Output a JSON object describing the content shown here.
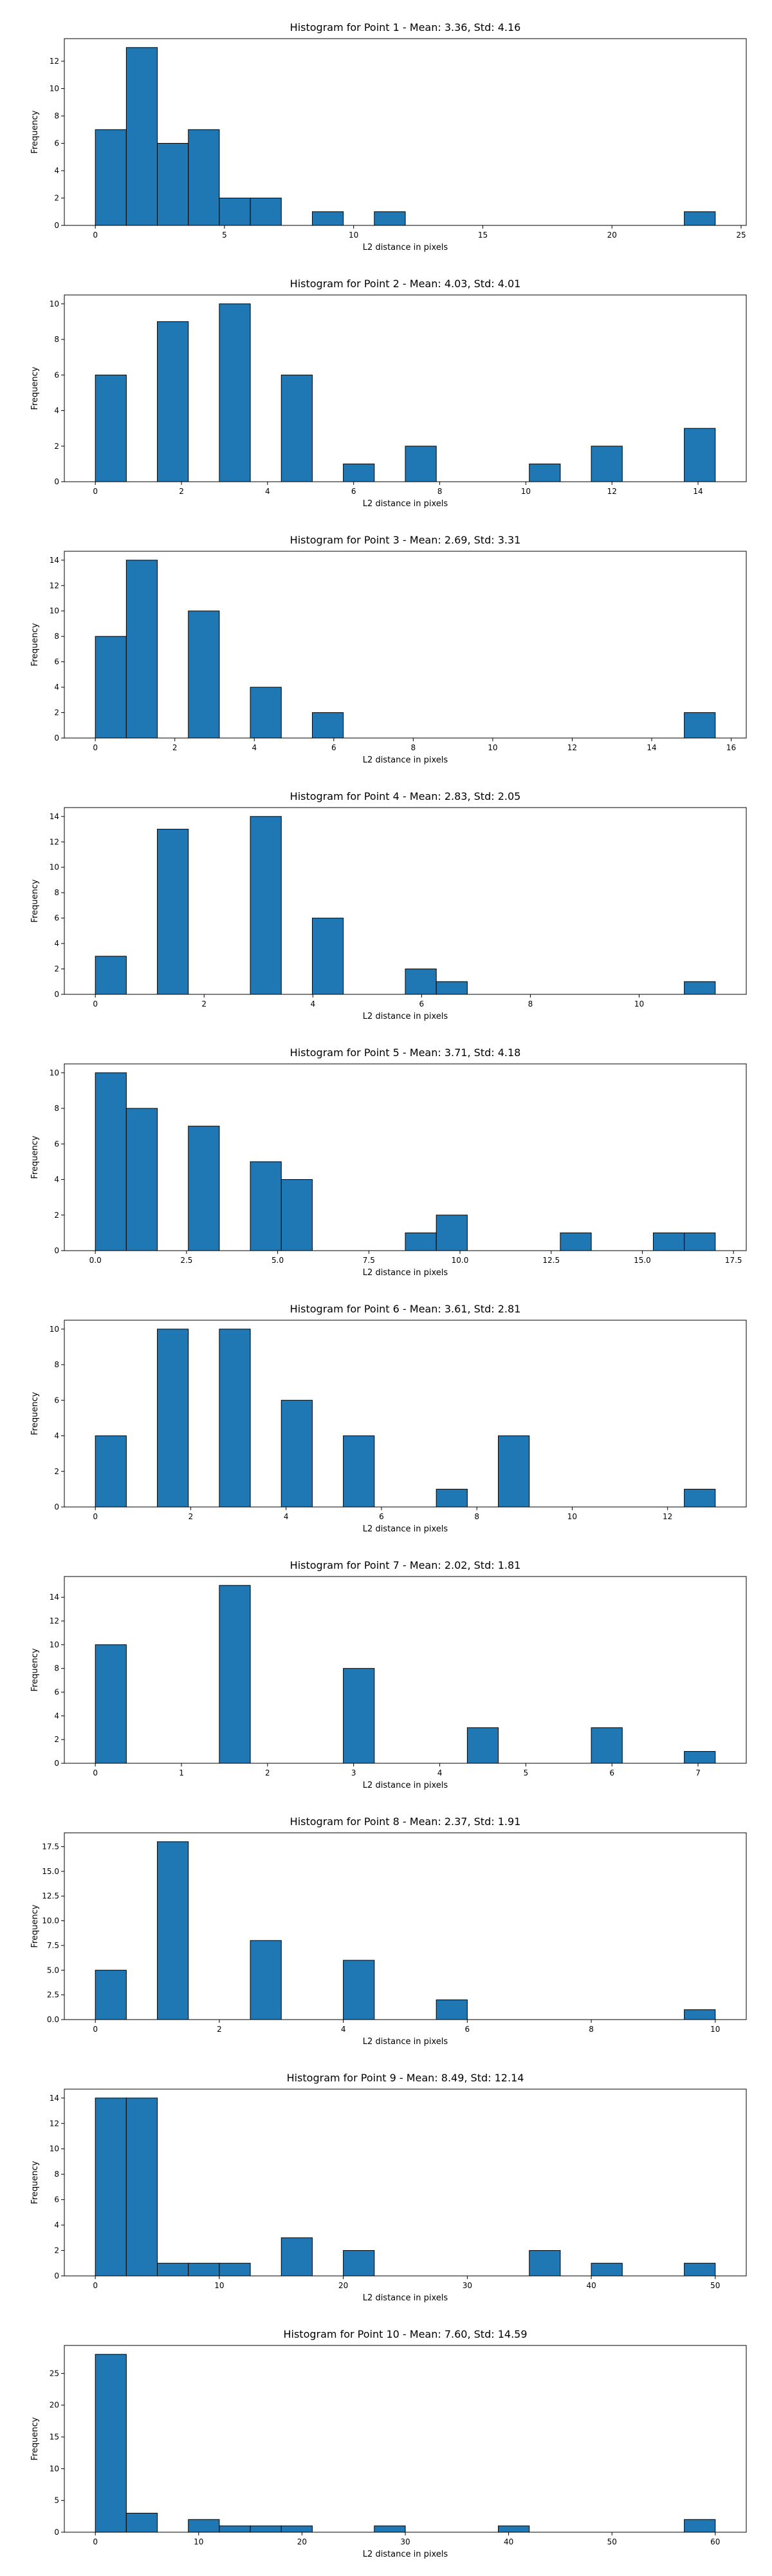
{
  "chart_data": [
    {
      "type": "bar",
      "title": "Histogram for Point 1 - Mean: 3.36, Std: 4.16",
      "xlabel": "L2 distance in pixels",
      "ylabel": "Frequency",
      "xlim": [
        -1.2,
        25.2
      ],
      "ylim": [
        0,
        13.65
      ],
      "xticks": [
        0,
        5,
        10,
        15,
        20,
        25
      ],
      "xtick_labels": [
        "0",
        "5",
        "10",
        "15",
        "20",
        "25"
      ],
      "yticks": [
        0,
        2,
        4,
        6,
        8,
        10,
        12
      ],
      "ytick_labels": [
        "0",
        "2",
        "4",
        "6",
        "8",
        "10",
        "12"
      ],
      "bin_edges": [
        0.0,
        1.2,
        2.4,
        3.6,
        4.8,
        6.0,
        7.2,
        8.4,
        9.6,
        10.8,
        12.0,
        13.2,
        14.4,
        15.6,
        16.8,
        18.0,
        19.2,
        20.4,
        21.6,
        22.8,
        24.0
      ],
      "values": [
        7,
        13,
        6,
        7,
        2,
        2,
        0,
        1,
        0,
        1,
        0,
        0,
        0,
        0,
        0,
        0,
        0,
        0,
        0,
        1
      ],
      "grid": false,
      "color": "#1f77b4"
    },
    {
      "type": "bar",
      "title": "Histogram for Point 2 - Mean: 4.03, Std: 4.01",
      "xlabel": "L2 distance in pixels",
      "ylabel": "Frequency",
      "xlim": [
        -0.72,
        15.12
      ],
      "ylim": [
        0,
        10.5
      ],
      "xticks": [
        0,
        2,
        4,
        6,
        8,
        10,
        12,
        14
      ],
      "xtick_labels": [
        "0",
        "2",
        "4",
        "6",
        "8",
        "10",
        "12",
        "14"
      ],
      "yticks": [
        0,
        2,
        4,
        6,
        8,
        10
      ],
      "ytick_labels": [
        "0",
        "2",
        "4",
        "6",
        "8",
        "10"
      ],
      "bin_edges": [
        0.0,
        0.72,
        1.44,
        2.16,
        2.88,
        3.6,
        4.32,
        5.04,
        5.76,
        6.48,
        7.2,
        7.92,
        8.64,
        9.36,
        10.08,
        10.8,
        11.52,
        12.24,
        12.96,
        13.68,
        14.4
      ],
      "values": [
        6,
        0,
        9,
        0,
        10,
        0,
        6,
        0,
        1,
        0,
        2,
        0,
        0,
        0,
        1,
        0,
        2,
        0,
        0,
        3
      ],
      "grid": false,
      "color": "#1f77b4"
    },
    {
      "type": "bar",
      "title": "Histogram for Point 3 - Mean: 2.69, Std: 3.31",
      "xlabel": "L2 distance in pixels",
      "ylabel": "Frequency",
      "xlim": [
        -0.78,
        16.38
      ],
      "ylim": [
        0,
        14.7
      ],
      "xticks": [
        0,
        2,
        4,
        6,
        8,
        10,
        12,
        14,
        16
      ],
      "xtick_labels": [
        "0",
        "2",
        "4",
        "6",
        "8",
        "10",
        "12",
        "14",
        "16"
      ],
      "yticks": [
        0,
        2,
        4,
        6,
        8,
        10,
        12,
        14
      ],
      "ytick_labels": [
        "0",
        "2",
        "4",
        "6",
        "8",
        "10",
        "12",
        "14"
      ],
      "bin_edges": [
        0.0,
        0.78,
        1.56,
        2.34,
        3.12,
        3.9,
        4.68,
        5.46,
        6.24,
        7.02,
        7.8,
        8.58,
        9.36,
        10.14,
        10.92,
        11.7,
        12.48,
        13.26,
        14.04,
        14.82,
        15.6
      ],
      "values": [
        8,
        14,
        0,
        10,
        0,
        4,
        0,
        2,
        0,
        0,
        0,
        0,
        0,
        0,
        0,
        0,
        0,
        0,
        0,
        2
      ],
      "grid": false,
      "color": "#1f77b4"
    },
    {
      "type": "bar",
      "title": "Histogram for Point 4 - Mean: 2.83, Std: 2.05",
      "xlabel": "L2 distance in pixels",
      "ylabel": "Frequency",
      "xlim": [
        -0.57,
        11.97
      ],
      "ylim": [
        0,
        14.7
      ],
      "xticks": [
        0,
        2,
        4,
        6,
        8,
        10
      ],
      "xtick_labels": [
        "0",
        "2",
        "4",
        "6",
        "8",
        "10"
      ],
      "yticks": [
        0,
        2,
        4,
        6,
        8,
        10,
        12,
        14
      ],
      "ytick_labels": [
        "0",
        "2",
        "4",
        "6",
        "8",
        "10",
        "12",
        "14"
      ],
      "bin_edges": [
        0.0,
        0.57,
        1.14,
        1.71,
        2.28,
        2.85,
        3.42,
        3.99,
        4.56,
        5.13,
        5.7,
        6.27,
        6.84,
        7.41,
        7.98,
        8.55,
        9.12,
        9.69,
        10.26,
        10.83,
        11.4
      ],
      "values": [
        3,
        0,
        13,
        0,
        0,
        14,
        0,
        6,
        0,
        0,
        2,
        1,
        0,
        0,
        0,
        0,
        0,
        0,
        0,
        1
      ],
      "grid": false,
      "color": "#1f77b4"
    },
    {
      "type": "bar",
      "title": "Histogram for Point 5 - Mean: 3.71, Std: 4.18",
      "xlabel": "L2 distance in pixels",
      "ylabel": "Frequency",
      "xlim": [
        -0.85,
        17.85
      ],
      "ylim": [
        0,
        10.5
      ],
      "xticks": [
        0.0,
        2.5,
        5.0,
        7.5,
        10.0,
        12.5,
        15.0,
        17.5
      ],
      "xtick_labels": [
        "0.0",
        "2.5",
        "5.0",
        "7.5",
        "10.0",
        "12.5",
        "15.0",
        "17.5"
      ],
      "yticks": [
        0,
        2,
        4,
        6,
        8,
        10
      ],
      "ytick_labels": [
        "0",
        "2",
        "4",
        "6",
        "8",
        "10"
      ],
      "bin_edges": [
        0.0,
        0.85,
        1.7,
        2.55,
        3.4,
        4.25,
        5.1,
        5.95,
        6.8,
        7.65,
        8.5,
        9.35,
        10.2,
        11.05,
        11.9,
        12.75,
        13.6,
        14.45,
        15.3,
        16.15,
        17.0
      ],
      "values": [
        10,
        8,
        0,
        7,
        0,
        5,
        4,
        0,
        0,
        0,
        1,
        2,
        0,
        0,
        0,
        1,
        0,
        0,
        1,
        1
      ],
      "grid": false,
      "color": "#1f77b4"
    },
    {
      "type": "bar",
      "title": "Histogram for Point 6 - Mean: 3.61, Std: 2.81",
      "xlabel": "L2 distance in pixels",
      "ylabel": "Frequency",
      "xlim": [
        -0.65,
        13.65
      ],
      "ylim": [
        0,
        10.5
      ],
      "xticks": [
        0,
        2,
        4,
        6,
        8,
        10,
        12
      ],
      "xtick_labels": [
        "0",
        "2",
        "4",
        "6",
        "8",
        "10",
        "12"
      ],
      "yticks": [
        0,
        2,
        4,
        6,
        8,
        10
      ],
      "ytick_labels": [
        "0",
        "2",
        "4",
        "6",
        "8",
        "10"
      ],
      "bin_edges": [
        0.0,
        0.65,
        1.3,
        1.95,
        2.6,
        3.25,
        3.9,
        4.55,
        5.2,
        5.85,
        6.5,
        7.15,
        7.8,
        8.45,
        9.1,
        9.75,
        10.4,
        11.05,
        11.7,
        12.35,
        13.0
      ],
      "values": [
        4,
        0,
        10,
        0,
        10,
        0,
        6,
        0,
        4,
        0,
        0,
        1,
        0,
        4,
        0,
        0,
        0,
        0,
        0,
        1
      ],
      "grid": false,
      "color": "#1f77b4"
    },
    {
      "type": "bar",
      "title": "Histogram for Point 7 - Mean: 2.02, Std: 1.81",
      "xlabel": "L2 distance in pixels",
      "ylabel": "Frequency",
      "xlim": [
        -0.36,
        7.56
      ],
      "ylim": [
        0,
        15.75
      ],
      "xticks": [
        0,
        1,
        2,
        3,
        4,
        5,
        6,
        7
      ],
      "xtick_labels": [
        "0",
        "1",
        "2",
        "3",
        "4",
        "5",
        "6",
        "7"
      ],
      "yticks": [
        0,
        2,
        4,
        6,
        8,
        10,
        12,
        14
      ],
      "ytick_labels": [
        "0",
        "2",
        "4",
        "6",
        "8",
        "10",
        "12",
        "14"
      ],
      "bin_edges": [
        0.0,
        0.36,
        0.72,
        1.08,
        1.44,
        1.8,
        2.16,
        2.52,
        2.88,
        3.24,
        3.6,
        3.96,
        4.32,
        4.68,
        5.04,
        5.4,
        5.76,
        6.12,
        6.48,
        6.84,
        7.2
      ],
      "values": [
        10,
        0,
        0,
        0,
        15,
        0,
        0,
        0,
        8,
        0,
        0,
        0,
        3,
        0,
        0,
        0,
        3,
        0,
        0,
        1
      ],
      "grid": false,
      "color": "#1f77b4"
    },
    {
      "type": "bar",
      "title": "Histogram for Point 8 - Mean: 2.37, Std: 1.91",
      "xlabel": "L2 distance in pixels",
      "ylabel": "Frequency",
      "xlim": [
        -0.5,
        10.5
      ],
      "ylim": [
        0,
        18.9
      ],
      "xticks": [
        0,
        2,
        4,
        6,
        8,
        10
      ],
      "xtick_labels": [
        "0",
        "2",
        "4",
        "6",
        "8",
        "10"
      ],
      "yticks": [
        0,
        2.5,
        5,
        7.5,
        10,
        12.5,
        15,
        17.5
      ],
      "ytick_labels": [
        "0.0",
        "2.5",
        "5.0",
        "7.5",
        "10.0",
        "12.5",
        "15.0",
        "17.5"
      ],
      "bin_edges": [
        0.0,
        0.5,
        1.0,
        1.5,
        2.0,
        2.5,
        3.0,
        3.5,
        4.0,
        4.5,
        5.0,
        5.5,
        6.0,
        6.5,
        7.0,
        7.5,
        8.0,
        8.5,
        9.0,
        9.5,
        10.0
      ],
      "values": [
        5,
        0,
        18,
        0,
        0,
        8,
        0,
        0,
        6,
        0,
        0,
        2,
        0,
        0,
        0,
        0,
        0,
        0,
        0,
        1
      ],
      "grid": false,
      "color": "#1f77b4"
    },
    {
      "type": "bar",
      "title": "Histogram for Point 9 - Mean: 8.49, Std: 12.14",
      "xlabel": "L2 distance in pixels",
      "ylabel": "Frequency",
      "xlim": [
        -2.5,
        52.5
      ],
      "ylim": [
        0,
        14.7
      ],
      "xticks": [
        0,
        10,
        20,
        30,
        40,
        50
      ],
      "xtick_labels": [
        "0",
        "10",
        "20",
        "30",
        "40",
        "50"
      ],
      "yticks": [
        0,
        2,
        4,
        6,
        8,
        10,
        12,
        14
      ],
      "ytick_labels": [
        "0",
        "2",
        "4",
        "6",
        "8",
        "10",
        "12",
        "14"
      ],
      "bin_edges": [
        0.0,
        2.5,
        5.0,
        7.5,
        10.0,
        12.5,
        15.0,
        17.5,
        20.0,
        22.5,
        25.0,
        27.5,
        30.0,
        32.5,
        35.0,
        37.5,
        40.0,
        42.5,
        45.0,
        47.5,
        50.0
      ],
      "values": [
        14,
        14,
        1,
        1,
        1,
        0,
        3,
        0,
        2,
        0,
        0,
        0,
        0,
        0,
        2,
        0,
        1,
        0,
        0,
        1
      ],
      "grid": false,
      "color": "#1f77b4"
    },
    {
      "type": "bar",
      "title": "Histogram for Point 10 - Mean: 7.60, Std: 14.59",
      "xlabel": "L2 distance in pixels",
      "ylabel": "Frequency",
      "xlim": [
        -3.0,
        63.0
      ],
      "ylim": [
        0,
        29.4
      ],
      "xticks": [
        0,
        10,
        20,
        30,
        40,
        50,
        60
      ],
      "xtick_labels": [
        "0",
        "10",
        "20",
        "30",
        "40",
        "50",
        "60"
      ],
      "yticks": [
        0,
        5,
        10,
        15,
        20,
        25
      ],
      "ytick_labels": [
        "0",
        "5",
        "10",
        "15",
        "20",
        "25"
      ],
      "bin_edges": [
        0.0,
        3.0,
        6.0,
        9.0,
        12.0,
        15.0,
        18.0,
        21.0,
        24.0,
        27.0,
        30.0,
        33.0,
        36.0,
        39.0,
        42.0,
        45.0,
        48.0,
        51.0,
        54.0,
        57.0,
        60.0
      ],
      "values": [
        28,
        3,
        0,
        2,
        1,
        1,
        1,
        0,
        0,
        1,
        0,
        0,
        0,
        1,
        0,
        0,
        0,
        0,
        0,
        2
      ],
      "grid": false,
      "color": "#1f77b4"
    }
  ]
}
